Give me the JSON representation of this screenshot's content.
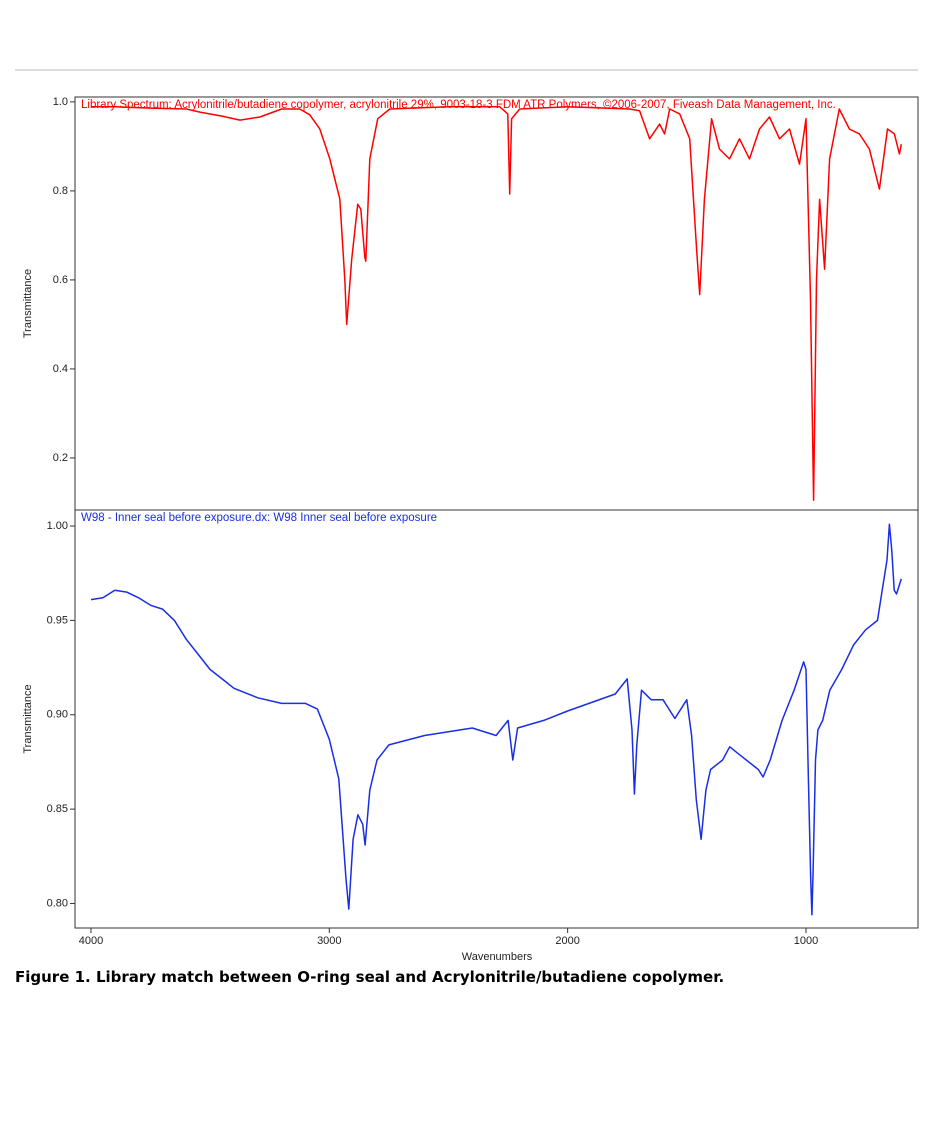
{
  "chart_data": [
    {
      "type": "line",
      "title": "Library Spectrum: Acrylonitrile/butadiene copolymer, acrylonitrile 29%, 9003-18-3 FDM ATR Polymers, ©2006-2007, Fiveash Data Management, Inc.",
      "y_label": "Transmittance",
      "color": "#ff0000",
      "xlim": [
        4067,
        530
      ],
      "ylim": [
        0.083,
        1.011
      ],
      "yticks": [
        {
          "value": 1,
          "label": "1.0"
        },
        0.8,
        0.6,
        0.4,
        0.2
      ],
      "x": [
        4000,
        3900,
        3753,
        3600,
        3543,
        3450,
        3375,
        3291,
        3200,
        3124,
        3082,
        3040,
        2998,
        2956,
        2935,
        2927,
        2906,
        2881,
        2868,
        2851,
        2847,
        2830,
        2797,
        2746,
        2500,
        2285,
        2251,
        2243,
        2235,
        2201,
        2000,
        1740,
        1698,
        1656,
        1614,
        1593,
        1572,
        1530,
        1488,
        1459,
        1446,
        1426,
        1396,
        1363,
        1321,
        1279,
        1237,
        1195,
        1153,
        1111,
        1069,
        1027,
        1000,
        981,
        968,
        956,
        943,
        922,
        901,
        860,
        818,
        776,
        734,
        692,
        658,
        629,
        608,
        600
      ],
      "values": [
        0.989,
        0.989,
        0.986,
        0.984,
        0.977,
        0.968,
        0.959,
        0.966,
        0.984,
        0.984,
        0.971,
        0.939,
        0.872,
        0.782,
        0.601,
        0.5,
        0.646,
        0.77,
        0.759,
        0.651,
        0.642,
        0.872,
        0.962,
        0.984,
        0.989,
        0.989,
        0.973,
        0.793,
        0.962,
        0.984,
        0.989,
        0.984,
        0.98,
        0.917,
        0.95,
        0.928,
        0.984,
        0.973,
        0.917,
        0.669,
        0.567,
        0.781,
        0.962,
        0.894,
        0.872,
        0.917,
        0.872,
        0.939,
        0.966,
        0.917,
        0.939,
        0.86,
        0.962,
        0.556,
        0.105,
        0.601,
        0.781,
        0.624,
        0.872,
        0.984,
        0.939,
        0.928,
        0.894,
        0.804,
        0.939,
        0.928,
        0.883,
        0.905
      ]
    },
    {
      "type": "line",
      "title": "W98 - Inner seal before exposure.dx: W98 Inner seal before exposure",
      "y_label": "Transmittance",
      "x_label": "Wavenumbers",
      "color": "#1a2ee6",
      "xlim": [
        4067,
        530
      ],
      "ylim": [
        0.787,
        1.0085
      ],
      "yticks": [
        {
          "value": 1,
          "label": "1.00"
        },
        0.95,
        {
          "value": 0.9,
          "label": "0.90"
        },
        0.85,
        {
          "value": 0.8,
          "label": "0.80"
        }
      ],
      "xticks": [
        4000,
        3000,
        2000,
        1000
      ],
      "x": [
        4000,
        3950,
        3900,
        3850,
        3800,
        3750,
        3700,
        3650,
        3600,
        3550,
        3500,
        3450,
        3400,
        3300,
        3200,
        3100,
        3050,
        3000,
        2960,
        2930,
        2918,
        2900,
        2880,
        2860,
        2850,
        2830,
        2800,
        2750,
        2600,
        2400,
        2300,
        2250,
        2230,
        2210,
        2100,
        2000,
        1800,
        1750,
        1730,
        1720,
        1710,
        1690,
        1650,
        1600,
        1550,
        1500,
        1480,
        1460,
        1440,
        1420,
        1400,
        1350,
        1320,
        1280,
        1200,
        1180,
        1150,
        1100,
        1050,
        1010,
        1000,
        990,
        980,
        975,
        970,
        960,
        950,
        930,
        900,
        850,
        800,
        750,
        700,
        680,
        660,
        650,
        640,
        630,
        620,
        600
      ],
      "values": [
        0.961,
        0.962,
        0.966,
        0.965,
        0.962,
        0.958,
        0.956,
        0.95,
        0.94,
        0.932,
        0.924,
        0.919,
        0.914,
        0.909,
        0.906,
        0.906,
        0.903,
        0.887,
        0.866,
        0.813,
        0.797,
        0.834,
        0.847,
        0.842,
        0.831,
        0.86,
        0.876,
        0.884,
        0.889,
        0.893,
        0.889,
        0.897,
        0.876,
        0.893,
        0.897,
        0.902,
        0.911,
        0.919,
        0.892,
        0.858,
        0.884,
        0.913,
        0.908,
        0.908,
        0.898,
        0.908,
        0.889,
        0.855,
        0.834,
        0.86,
        0.871,
        0.876,
        0.883,
        0.879,
        0.871,
        0.867,
        0.876,
        0.897,
        0.913,
        0.928,
        0.924,
        0.866,
        0.813,
        0.794,
        0.817,
        0.876,
        0.892,
        0.897,
        0.913,
        0.924,
        0.937,
        0.945,
        0.95,
        0.966,
        0.982,
        1.001,
        0.987,
        0.966,
        0.964,
        0.972
      ]
    }
  ],
  "caption": "Figure 1. Library match between O-ring seal and Acrylonitrile/butadiene copolymer."
}
